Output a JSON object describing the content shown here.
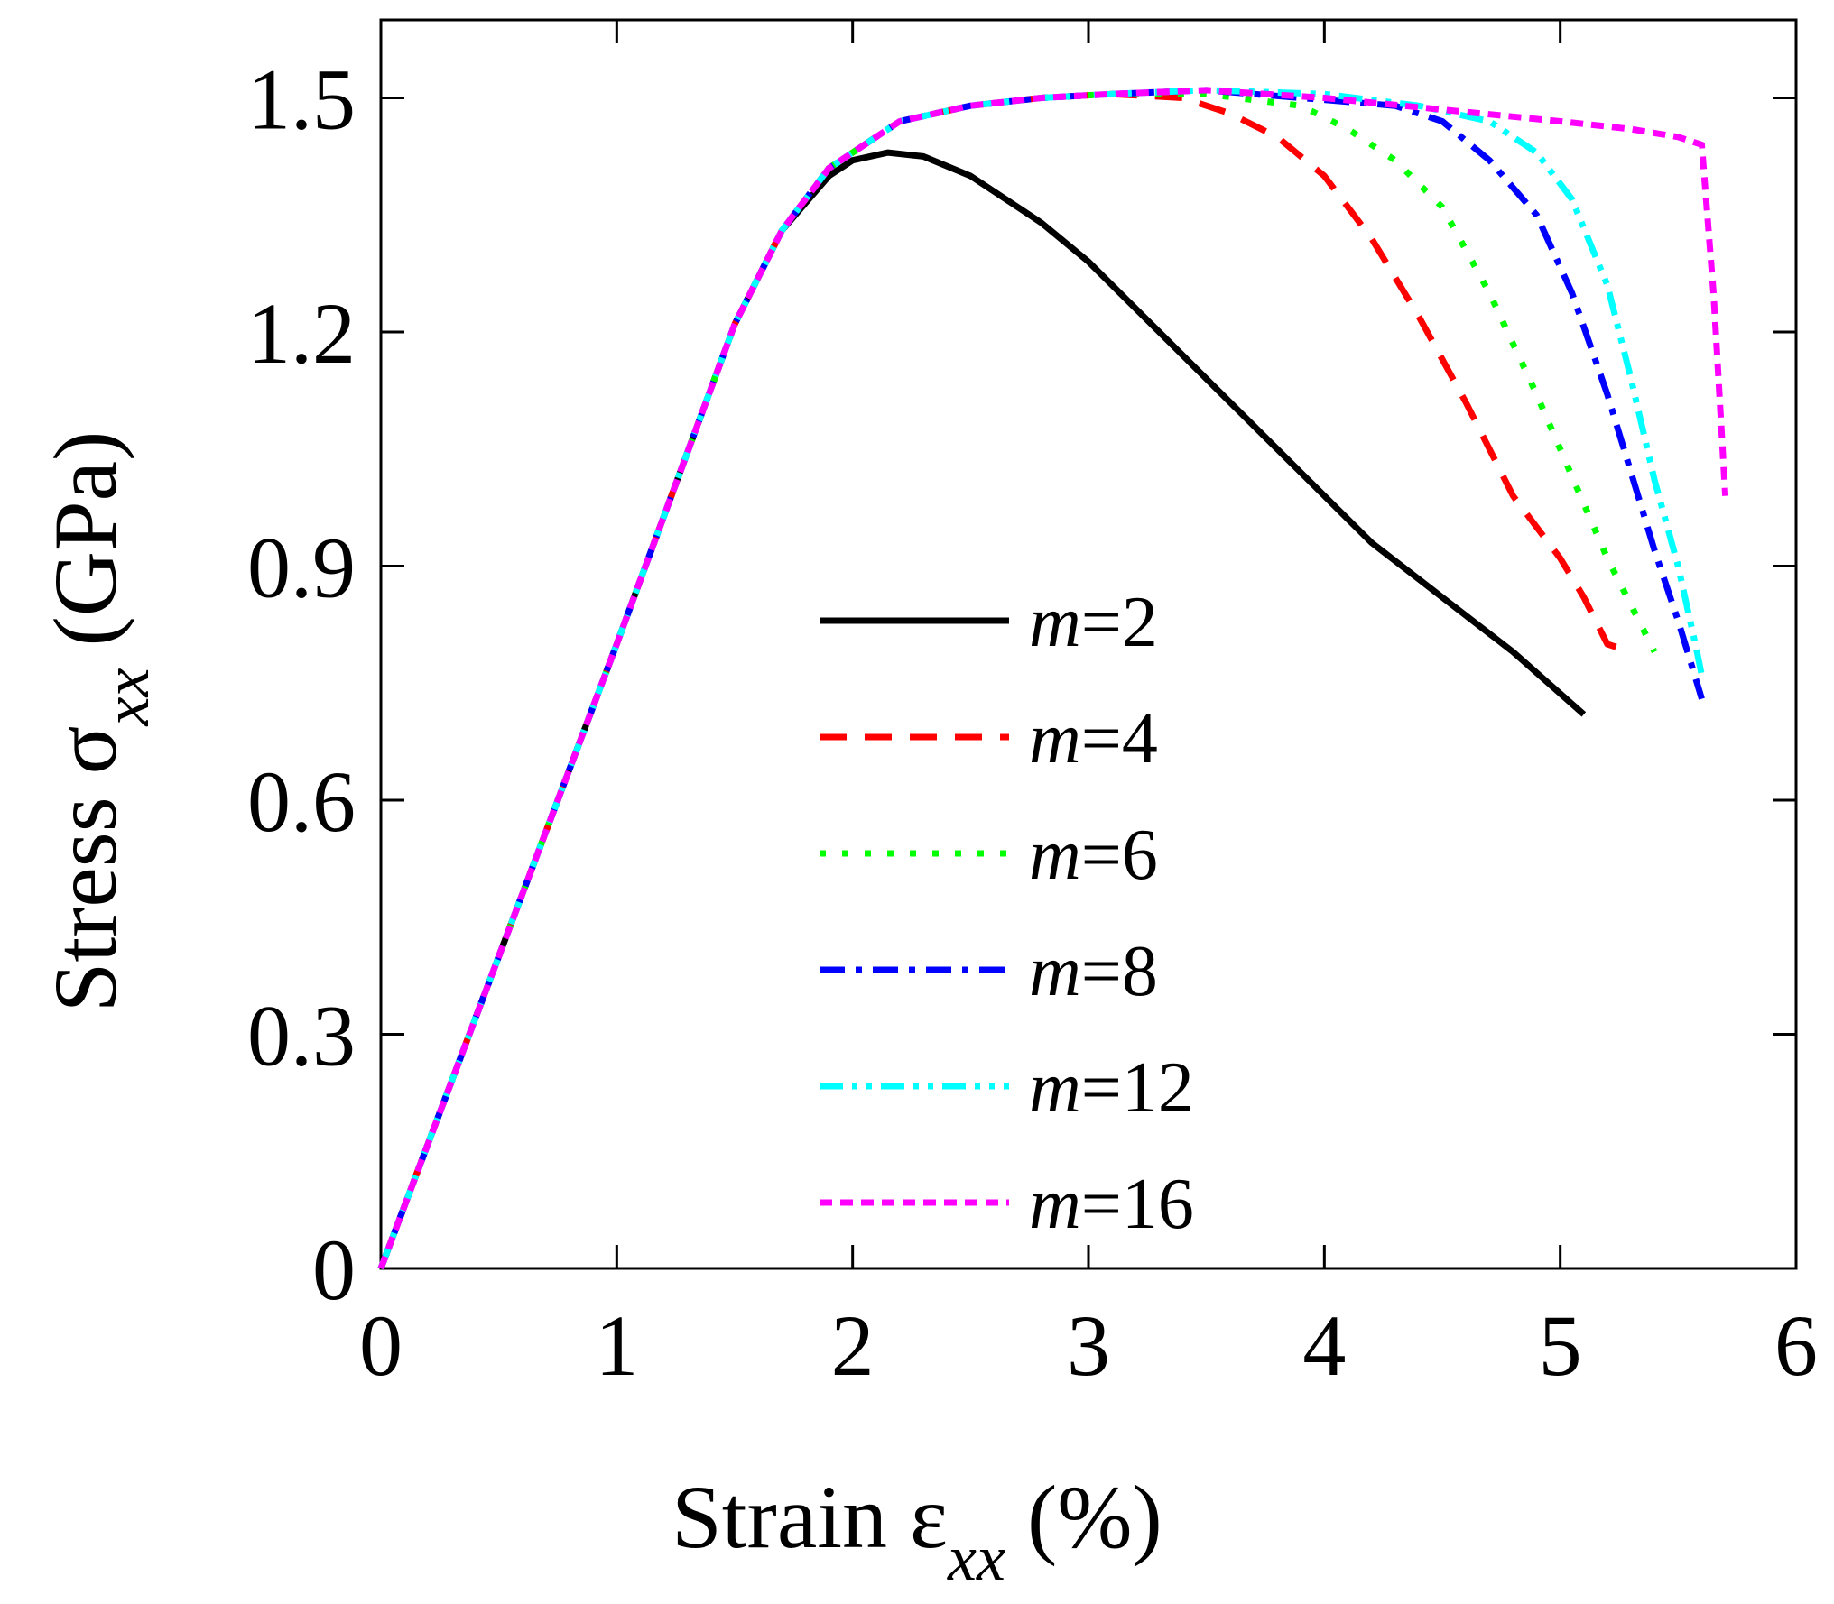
{
  "chart_data": {
    "type": "line",
    "title": "",
    "xlabel": {
      "main": "Strain ε",
      "sub": "xx",
      "unit": "(%)"
    },
    "ylabel": {
      "main": "Stress σ",
      "sub": "xx",
      "unit": "(GPa)"
    },
    "xlim": [
      0,
      6
    ],
    "ylim": [
      0,
      1.5
    ],
    "ymax_display": 1.6,
    "x_ticks": [
      {
        "value": 0,
        "label": "0"
      },
      {
        "value": 1,
        "label": "1"
      },
      {
        "value": 2,
        "label": "2"
      },
      {
        "value": 3,
        "label": "3"
      },
      {
        "value": 4,
        "label": "4"
      },
      {
        "value": 5,
        "label": "5"
      },
      {
        "value": 6,
        "label": "6"
      }
    ],
    "y_ticks": [
      {
        "value": 0,
        "label": "0"
      },
      {
        "value": 0.3,
        "label": "0.3"
      },
      {
        "value": 0.6,
        "label": "0.6"
      },
      {
        "value": 0.9,
        "label": "0.9"
      },
      {
        "value": 1.2,
        "label": "1.2"
      },
      {
        "value": 1.5,
        "label": "1.5"
      }
    ],
    "grid": false,
    "legend_position": "center",
    "series": [
      {
        "name": "m=2",
        "prefix": "m",
        "suffix": "=2",
        "color": "#000000",
        "dash": "solid",
        "points": [
          [
            0,
            0
          ],
          [
            0.5,
            0.4
          ],
          [
            1.0,
            0.8
          ],
          [
            1.5,
            1.21
          ],
          [
            1.7,
            1.33
          ],
          [
            1.9,
            1.4
          ],
          [
            2.0,
            1.42
          ],
          [
            2.15,
            1.43
          ],
          [
            2.3,
            1.425
          ],
          [
            2.5,
            1.4
          ],
          [
            2.8,
            1.34
          ],
          [
            3.0,
            1.29
          ],
          [
            3.3,
            1.2
          ],
          [
            3.6,
            1.11
          ],
          [
            3.9,
            1.02
          ],
          [
            4.2,
            0.93
          ],
          [
            4.5,
            0.86
          ],
          [
            4.8,
            0.79
          ],
          [
            5.1,
            0.71
          ]
        ]
      },
      {
        "name": "m=4",
        "prefix": "m",
        "suffix": "=4",
        "color": "#ff0000",
        "dash": "dash",
        "points": [
          [
            0,
            0
          ],
          [
            0.5,
            0.4
          ],
          [
            1.0,
            0.8
          ],
          [
            1.5,
            1.21
          ],
          [
            1.7,
            1.33
          ],
          [
            1.9,
            1.41
          ],
          [
            2.2,
            1.47
          ],
          [
            2.5,
            1.49
          ],
          [
            2.8,
            1.5
          ],
          [
            3.1,
            1.505
          ],
          [
            3.4,
            1.5
          ],
          [
            3.6,
            1.48
          ],
          [
            3.8,
            1.45
          ],
          [
            4.0,
            1.4
          ],
          [
            4.2,
            1.32
          ],
          [
            4.4,
            1.22
          ],
          [
            4.6,
            1.11
          ],
          [
            4.8,
            0.99
          ],
          [
            5.0,
            0.91
          ],
          [
            5.1,
            0.86
          ],
          [
            5.2,
            0.8
          ],
          [
            5.3,
            0.79
          ]
        ]
      },
      {
        "name": "m=6",
        "prefix": "m",
        "suffix": "=6",
        "color": "#00ff00",
        "dash": "dot",
        "points": [
          [
            0,
            0
          ],
          [
            0.5,
            0.4
          ],
          [
            1.0,
            0.8
          ],
          [
            1.5,
            1.21
          ],
          [
            1.7,
            1.33
          ],
          [
            1.9,
            1.41
          ],
          [
            2.2,
            1.47
          ],
          [
            2.5,
            1.49
          ],
          [
            2.8,
            1.5
          ],
          [
            3.1,
            1.505
          ],
          [
            3.5,
            1.505
          ],
          [
            3.9,
            1.49
          ],
          [
            4.1,
            1.46
          ],
          [
            4.3,
            1.42
          ],
          [
            4.5,
            1.36
          ],
          [
            4.7,
            1.25
          ],
          [
            4.9,
            1.12
          ],
          [
            5.1,
            0.98
          ],
          [
            5.2,
            0.91
          ],
          [
            5.3,
            0.85
          ],
          [
            5.4,
            0.79
          ]
        ]
      },
      {
        "name": "m=8",
        "prefix": "m",
        "suffix": "=8",
        "color": "#0000ff",
        "dash": "dashdot",
        "points": [
          [
            0,
            0
          ],
          [
            0.5,
            0.4
          ],
          [
            1.0,
            0.8
          ],
          [
            1.5,
            1.21
          ],
          [
            1.7,
            1.33
          ],
          [
            1.9,
            1.41
          ],
          [
            2.2,
            1.47
          ],
          [
            2.5,
            1.49
          ],
          [
            2.8,
            1.5
          ],
          [
            3.1,
            1.505
          ],
          [
            3.5,
            1.51
          ],
          [
            3.9,
            1.5
          ],
          [
            4.3,
            1.49
          ],
          [
            4.5,
            1.47
          ],
          [
            4.7,
            1.42
          ],
          [
            4.9,
            1.35
          ],
          [
            5.05,
            1.25
          ],
          [
            5.2,
            1.12
          ],
          [
            5.3,
            1.02
          ],
          [
            5.4,
            0.92
          ],
          [
            5.5,
            0.83
          ],
          [
            5.6,
            0.73
          ]
        ]
      },
      {
        "name": "m=12",
        "prefix": "m",
        "suffix": "=12",
        "color": "#00ffff",
        "dash": "dashdotdot",
        "points": [
          [
            0,
            0
          ],
          [
            0.5,
            0.4
          ],
          [
            1.0,
            0.8
          ],
          [
            1.5,
            1.21
          ],
          [
            1.7,
            1.33
          ],
          [
            1.9,
            1.41
          ],
          [
            2.2,
            1.47
          ],
          [
            2.5,
            1.49
          ],
          [
            2.8,
            1.5
          ],
          [
            3.1,
            1.505
          ],
          [
            3.5,
            1.51
          ],
          [
            4.0,
            1.505
          ],
          [
            4.4,
            1.49
          ],
          [
            4.7,
            1.47
          ],
          [
            4.9,
            1.43
          ],
          [
            5.05,
            1.37
          ],
          [
            5.2,
            1.26
          ],
          [
            5.3,
            1.14
          ],
          [
            5.4,
            1.01
          ],
          [
            5.5,
            0.9
          ],
          [
            5.58,
            0.79
          ],
          [
            5.6,
            0.76
          ]
        ]
      },
      {
        "name": "m=16",
        "prefix": "m",
        "suffix": "=16",
        "color": "#ff00ff",
        "dash": "shortdash",
        "points": [
          [
            0,
            0
          ],
          [
            0.5,
            0.4
          ],
          [
            1.0,
            0.8
          ],
          [
            1.5,
            1.21
          ],
          [
            1.7,
            1.33
          ],
          [
            1.9,
            1.41
          ],
          [
            2.2,
            1.47
          ],
          [
            2.5,
            1.49
          ],
          [
            2.8,
            1.5
          ],
          [
            3.1,
            1.505
          ],
          [
            3.5,
            1.51
          ],
          [
            4.0,
            1.5
          ],
          [
            4.5,
            1.485
          ],
          [
            5.0,
            1.47
          ],
          [
            5.3,
            1.46
          ],
          [
            5.5,
            1.45
          ],
          [
            5.6,
            1.44
          ],
          [
            5.65,
            1.25
          ],
          [
            5.7,
            0.99
          ]
        ]
      }
    ]
  }
}
